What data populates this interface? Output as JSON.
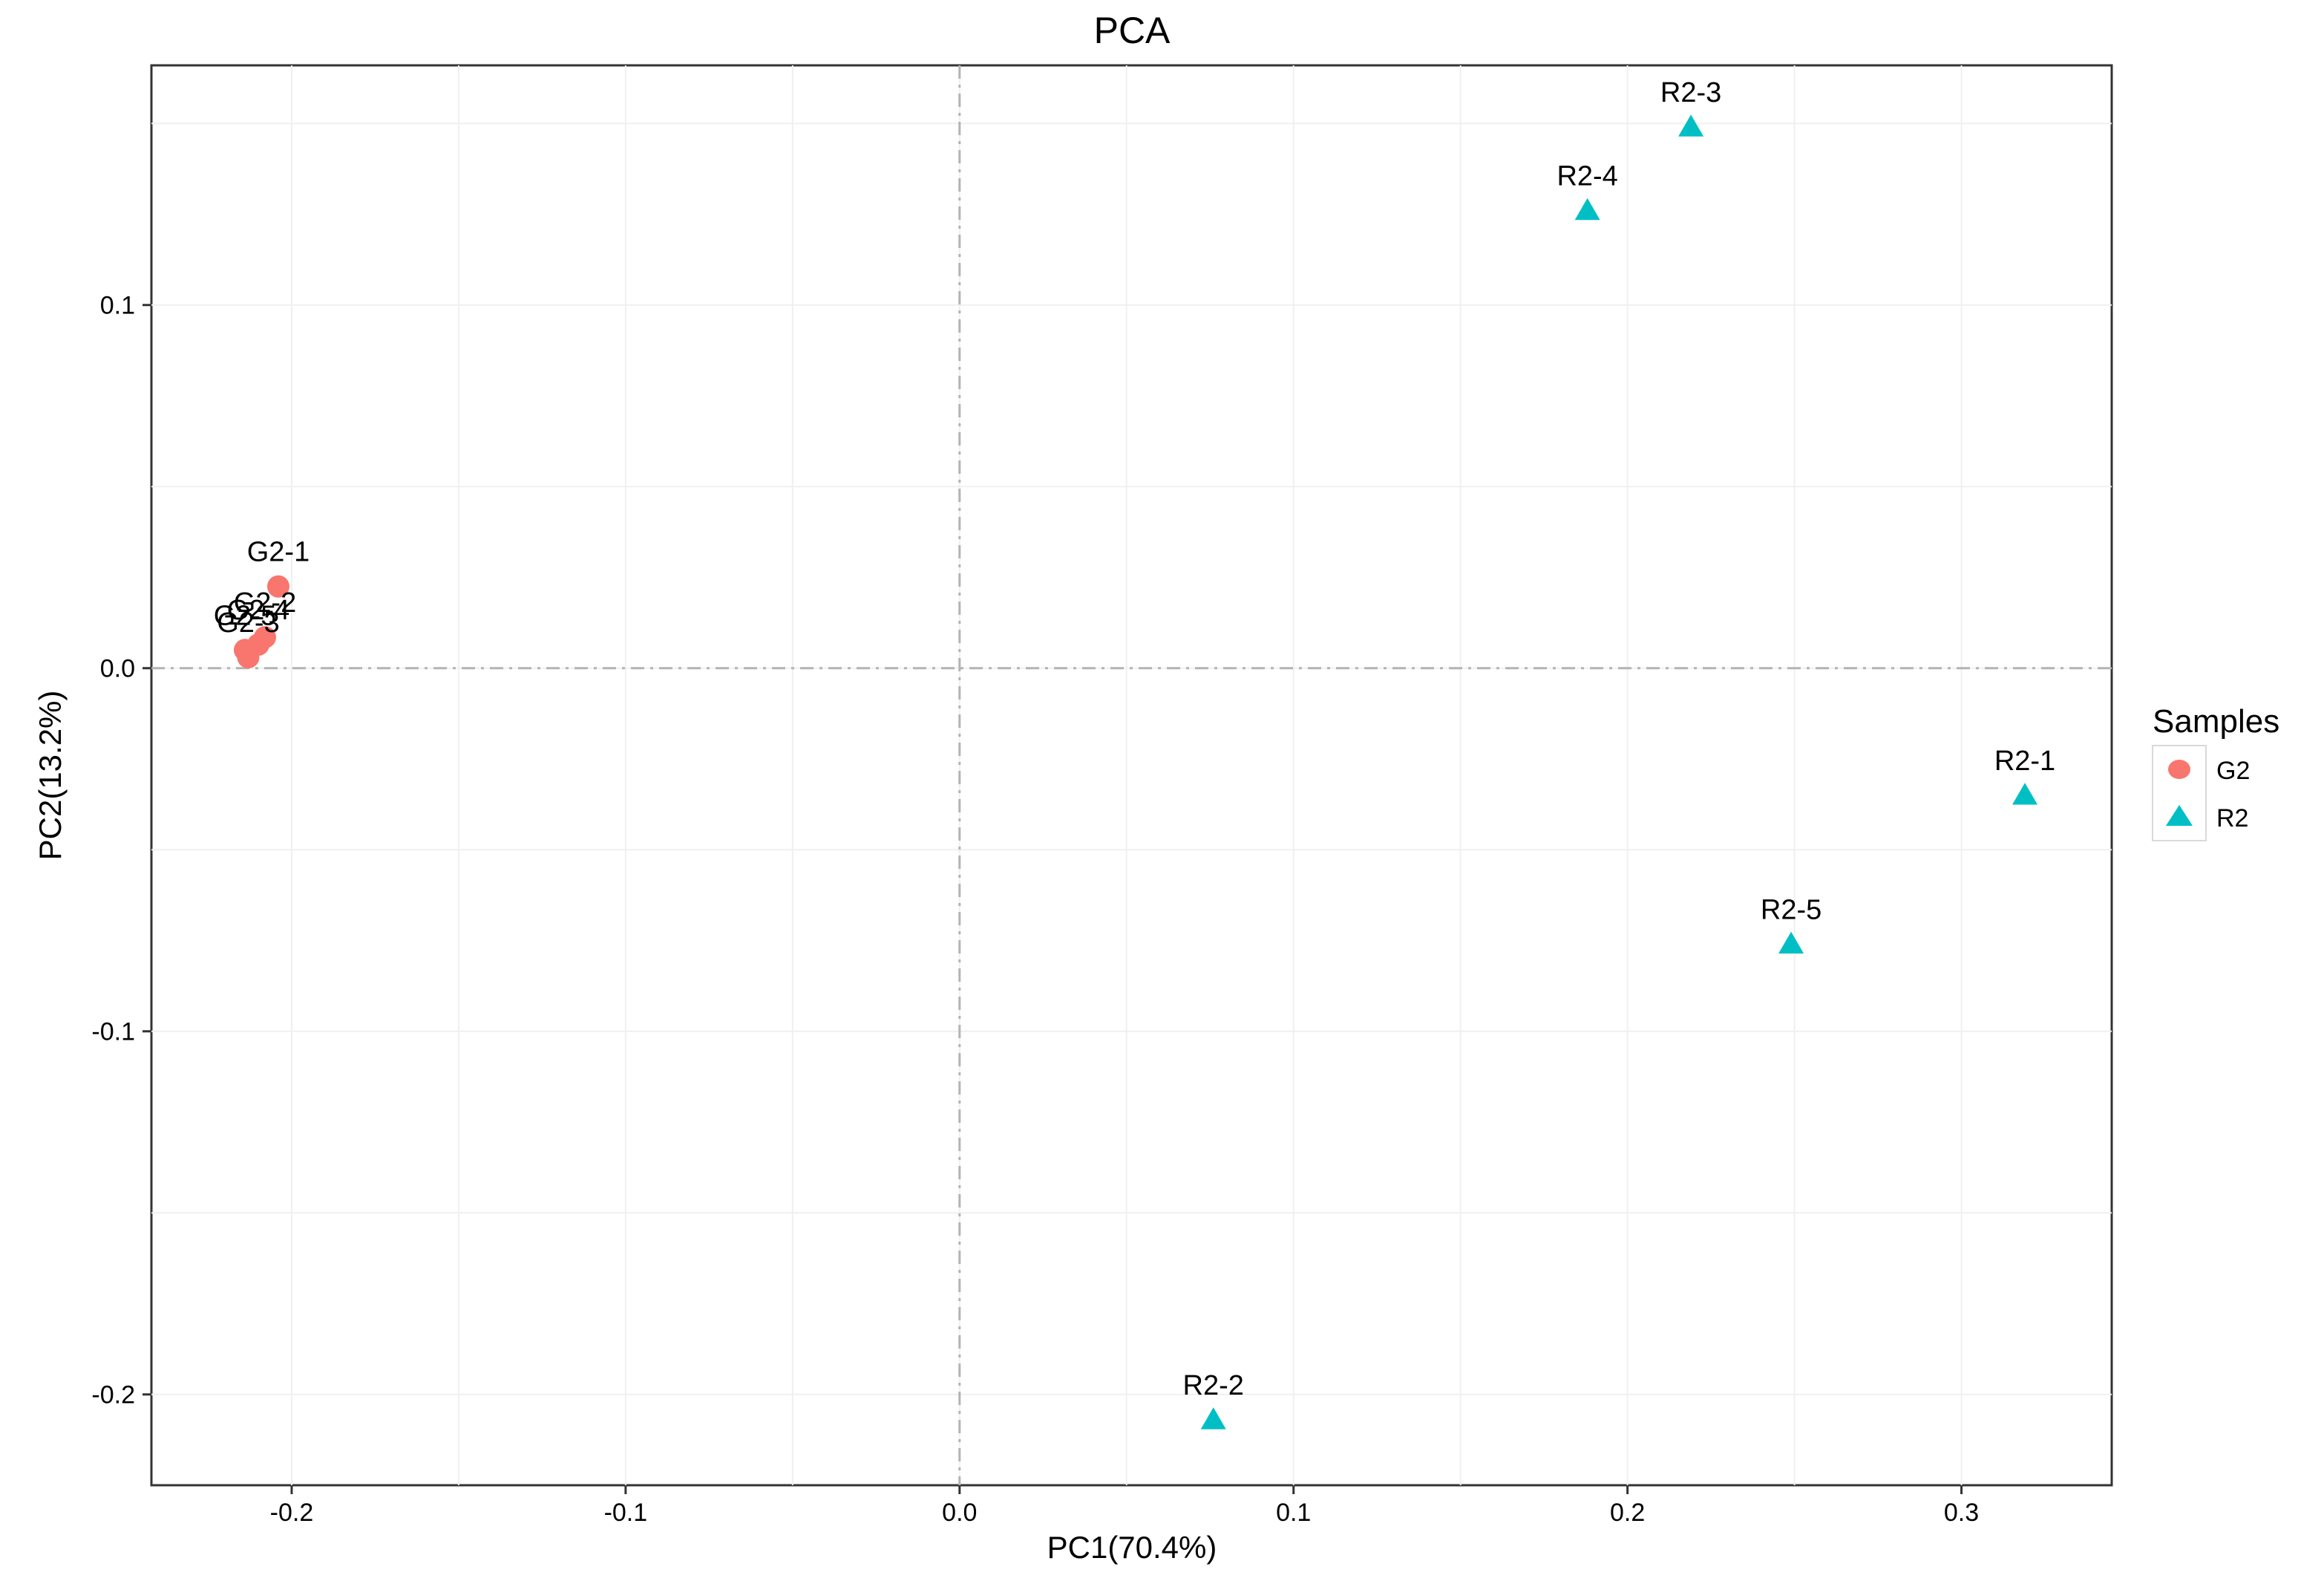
{
  "chart_data": {
    "type": "scatter",
    "title": "PCA",
    "xlabel": "PC1(70.4%)",
    "ylabel": "PC2(13.2%)",
    "xlim": [
      -0.242,
      0.345
    ],
    "ylim": [
      -0.225,
      0.166
    ],
    "xticks": [
      -0.2,
      -0.1,
      0.0,
      0.1,
      0.2,
      0.3
    ],
    "xtick_labels": [
      "-0.2",
      "-0.1",
      "0.0",
      "0.1",
      "0.2",
      "0.3"
    ],
    "yticks": [
      -0.2,
      -0.1,
      0.0,
      0.1
    ],
    "ytick_labels": [
      "-0.2",
      "-0.1",
      "0.0",
      "0.1"
    ],
    "reference_lines": {
      "x": 0,
      "y": 0,
      "style": "dash-dot"
    },
    "grid": true,
    "legend": {
      "title": "Samples",
      "position": "right"
    },
    "series": [
      {
        "name": "G2",
        "marker": "circle",
        "color": "#F8766D",
        "points": [
          {
            "label": "G2-1",
            "x": -0.204,
            "y": 0.0225
          },
          {
            "label": "G2-2",
            "x": -0.208,
            "y": 0.0085
          },
          {
            "label": "G2-4",
            "x": -0.21,
            "y": 0.0065
          },
          {
            "label": "G2-5",
            "x": -0.214,
            "y": 0.005
          },
          {
            "label": "G2-3",
            "x": -0.213,
            "y": 0.003
          }
        ]
      },
      {
        "name": "R2",
        "marker": "triangle",
        "color": "#00BFC4",
        "points": [
          {
            "label": "R2-1",
            "x": 0.319,
            "y": -0.035
          },
          {
            "label": "R2-2",
            "x": 0.076,
            "y": -0.207
          },
          {
            "label": "R2-3",
            "x": 0.219,
            "y": 0.149
          },
          {
            "label": "R2-4",
            "x": 0.188,
            "y": 0.126
          },
          {
            "label": "R2-5",
            "x": 0.249,
            "y": -0.076
          }
        ]
      }
    ]
  }
}
